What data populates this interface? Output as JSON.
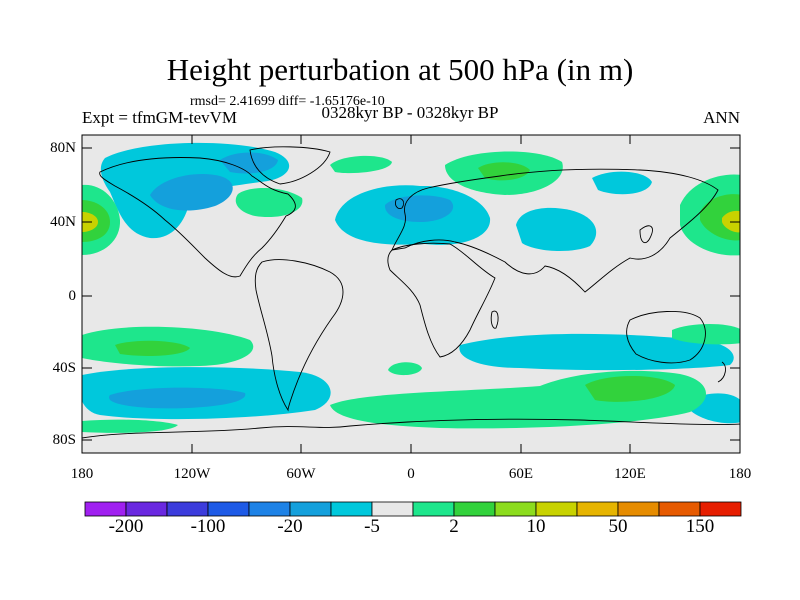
{
  "map": {
    "title": "Height perturbation at 500 hPa (in m)",
    "stats_text": "rmsd= 2.41699 diff= -1.65176e-10",
    "left_label": "Expt = tfmGM-tevVM",
    "center_label": "0328kyr BP - 0328kyr BP",
    "right_label": "ANN",
    "y_ticks": [
      "80N",
      "40N",
      "0",
      "40S",
      "80S"
    ],
    "x_ticks": [
      "180",
      "120W",
      "60W",
      "0",
      "60E",
      "120E",
      "180"
    ]
  },
  "colorbar": {
    "labels": [
      "-200",
      "-100",
      "-20",
      "-5",
      "2",
      "10",
      "50",
      "150"
    ],
    "colors": [
      "#a020f0",
      "#6a28e0",
      "#3c3cdc",
      "#1e5ae6",
      "#1e82e6",
      "#14a0dc",
      "#00c8dc",
      "#e8e8e8",
      "#1ee68c",
      "#32d23c",
      "#8cdc1e",
      "#c8d200",
      "#e6b400",
      "#e68c00",
      "#e65a00",
      "#e61e00"
    ]
  },
  "colors": {
    "background": "#e8e8e8",
    "neg_light": "#00c8dc",
    "neg_mid": "#14a0dc",
    "pos_light": "#1ee68c",
    "pos_mid": "#32d23c",
    "pos_high": "#c8d200"
  }
}
